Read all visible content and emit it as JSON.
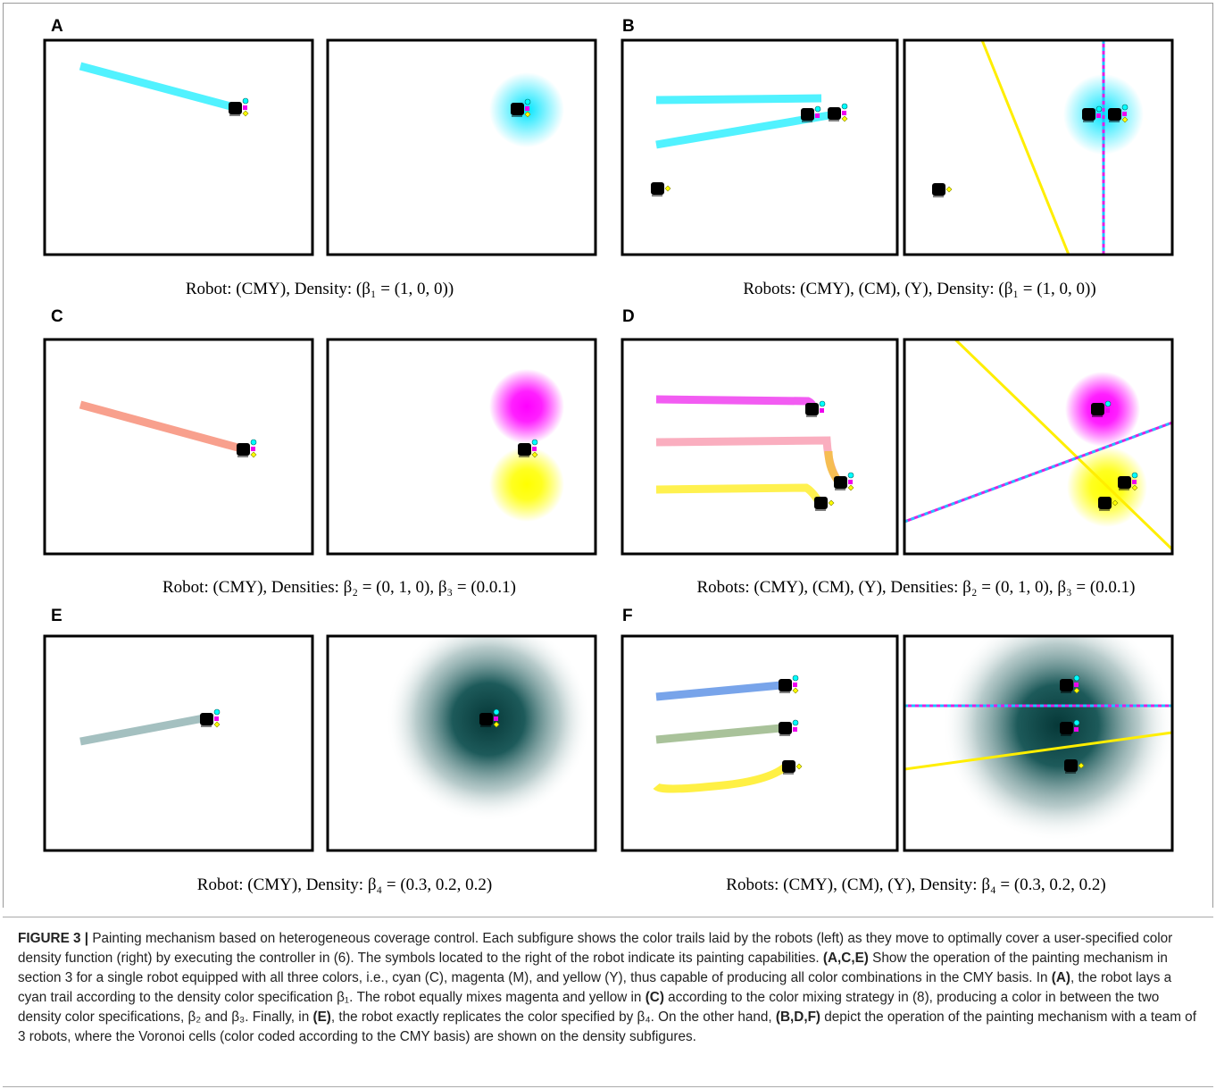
{
  "panels": [
    {
      "label": "A",
      "caption": "Robot: (CMY), Density: (β₁ = (1, 0, 0))"
    },
    {
      "label": "B",
      "caption": "Robots: (CMY), (CM), (Y), Density: (β₁ = (1, 0, 0))"
    },
    {
      "label": "C",
      "caption": "Robot: (CMY), Densities: β₂ = (0, 1, 0), β₃ = (0.0.1)"
    },
    {
      "label": "D",
      "caption": "Robots: (CMY), (CM), (Y), Densities: β₂ = (0, 1, 0), β₃ = (0.0.1)"
    },
    {
      "label": "E",
      "caption": "Robot: (CMY), Density: β₄ = (0.3, 0.2, 0.2)"
    },
    {
      "label": "F",
      "caption": "Robots: (CMY), (CM), (Y), Density: β₄ = (0.3, 0.2, 0.2)"
    }
  ],
  "figure_caption": {
    "segments": [
      "FIGURE 3 |",
      " Painting mechanism based on heterogeneous coverage control. Each subfigure shows the color trails laid by the robots (left) as they move to optimally cover a user-specified color density function (right) by executing the controller in (6). The symbols located to the right of the robot indicate its painting capabilities. ",
      "(A,C,E)",
      " Show the operation of the painting mechanism in section 3 for a single robot equipped with all three colors, i.e., cyan (C), magenta (M), and yellow (Y), thus capable of producing all color combinations in the CMY basis. In ",
      "(A)",
      ", the robot lays a cyan trail according to the density color specification β₁. The robot equally mixes magenta and yellow in ",
      "(C)",
      " according to the color mixing strategy in (8), producing a color in between the two density color specifications, β₂ and β₃. Finally, in ",
      "(E)",
      ", the robot exactly replicates the color specified by β₄. On the other hand, ",
      "(B,D,F)",
      " depict the operation of the painting mechanism with a team of 3 robots, where the Voronoi cells (color coded according to the CMY basis) are shown on the density subfigures."
    ]
  }
}
